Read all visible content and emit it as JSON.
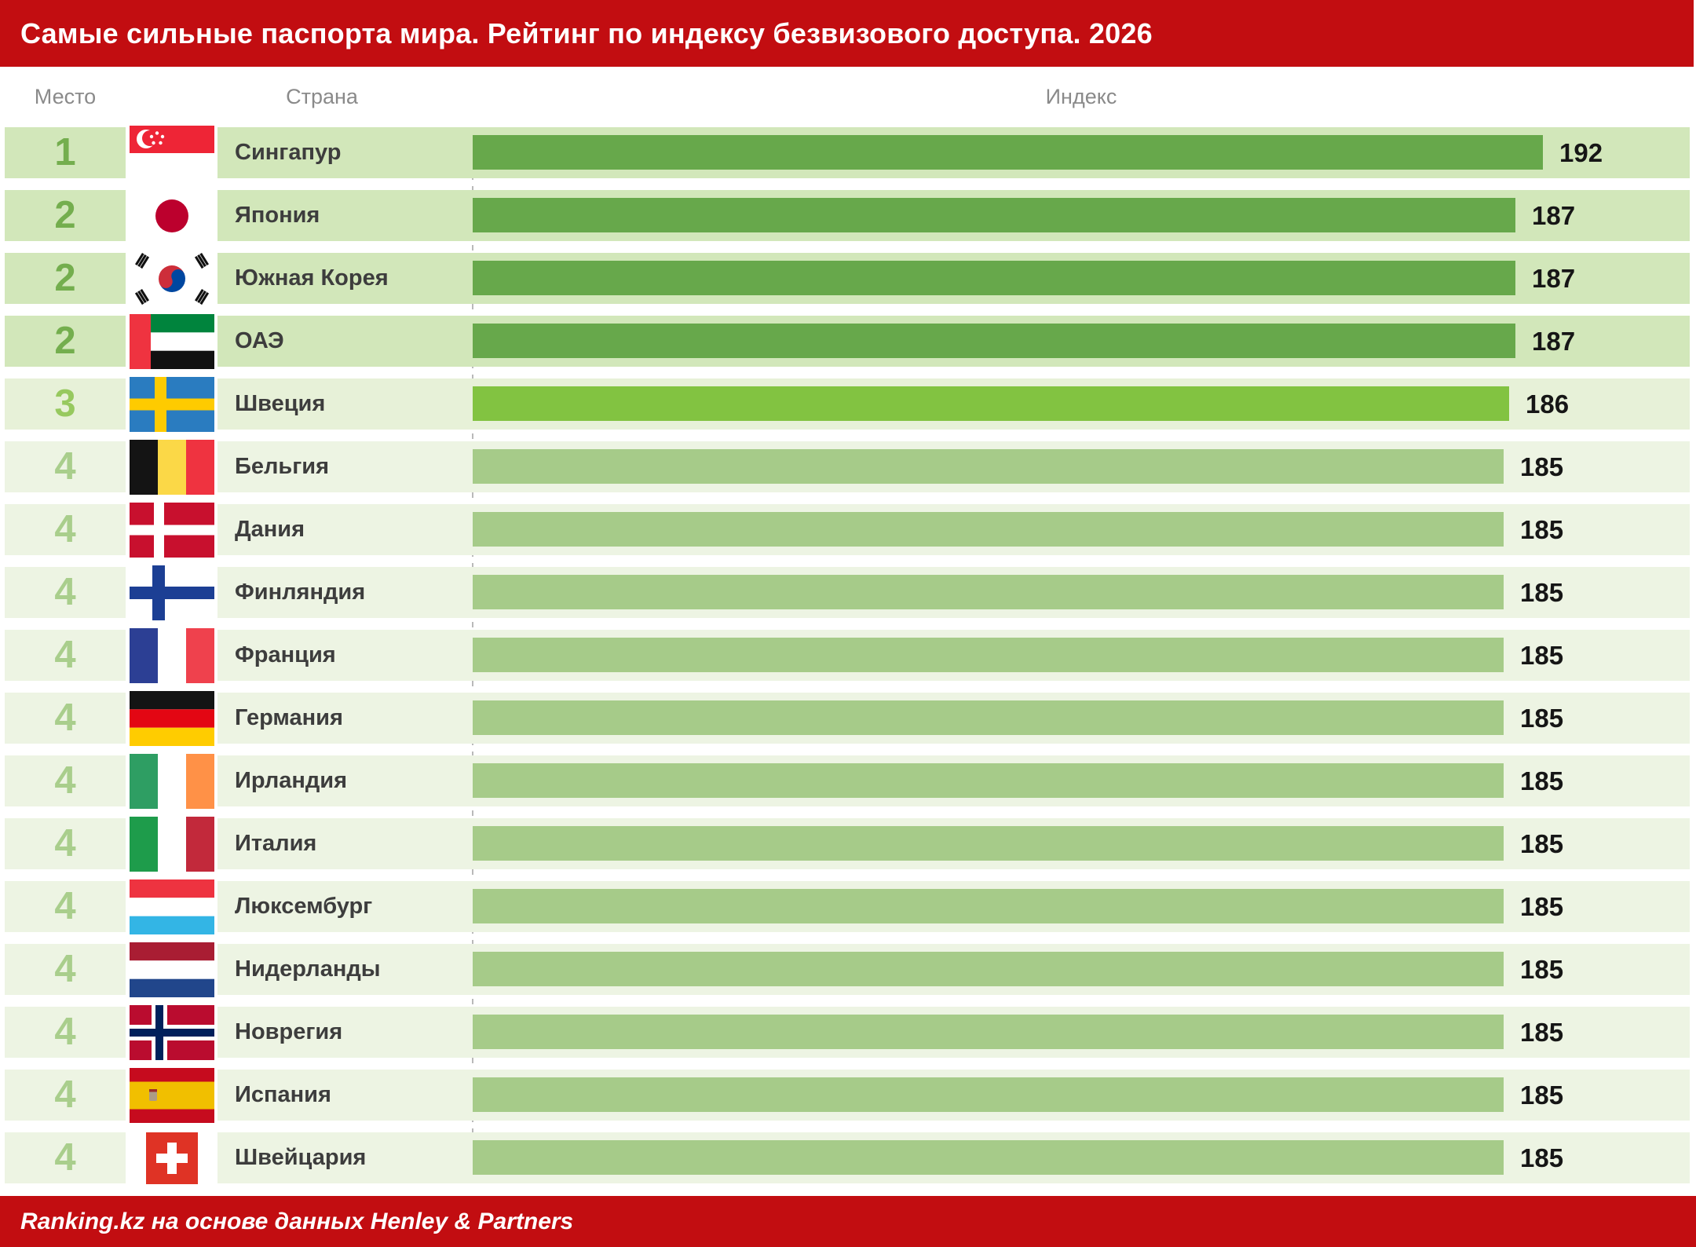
{
  "title": "Самые сильные паспорта мира. Рейтинг по индексу безвизового доступа. 2026",
  "columns": {
    "rank": "Место",
    "country": "Страна",
    "index": "Индекс"
  },
  "footer": "Ranking.kz на основе данных Henley & Partners",
  "accent_red": "#C20D11",
  "chart_data": {
    "type": "bar",
    "orientation": "horizontal",
    "title": "Самые сильные паспорта мира. Рейтинг по индексу безвизового доступа. 2026",
    "xlabel": "Индекс",
    "xlim": [
      0,
      192
    ],
    "grid": false,
    "source": "Ranking.kz на основе данных Henley & Partners",
    "categories": [
      "Сингапур",
      "Япония",
      "Южная Корея",
      "ОАЭ",
      "Швеция",
      "Бельгия",
      "Дания",
      "Финляндия",
      "Франция",
      "Германия",
      "Ирландия",
      "Италия",
      "Люксембург",
      "Нидерланды",
      "Новрегия",
      "Испания",
      "Швейцария"
    ],
    "values": [
      192,
      187,
      187,
      187,
      186,
      185,
      185,
      185,
      185,
      185,
      185,
      185,
      185,
      185,
      185,
      185,
      185
    ],
    "ranks": [
      "1",
      "2",
      "2",
      "2",
      "3",
      "4",
      "4",
      "4",
      "4",
      "4",
      "4",
      "4",
      "4",
      "4",
      "4",
      "4",
      "4"
    ],
    "tiers": [
      "top",
      "top",
      "top",
      "top",
      "mid",
      "low",
      "low",
      "low",
      "low",
      "low",
      "low",
      "low",
      "low",
      "low",
      "low",
      "low",
      "low"
    ],
    "flags": [
      "singapore",
      "japan",
      "south-korea",
      "uae",
      "sweden",
      "belgium",
      "denmark",
      "finland",
      "france",
      "germany",
      "ireland",
      "italy",
      "luxembourg",
      "netherlands",
      "norway",
      "spain",
      "switzerland"
    ],
    "bar_colors": {
      "top": "#67A84B",
      "mid": "#82C341",
      "low": "#A6CB89"
    },
    "row_bg_colors": {
      "top": "#D2E7BA",
      "mid": "#E7F1D8",
      "low": "#EDF4E3"
    },
    "rank_text_colors": {
      "top": "#74AE4E",
      "mid": "#97C95F",
      "low": "#A9CE8C"
    }
  }
}
